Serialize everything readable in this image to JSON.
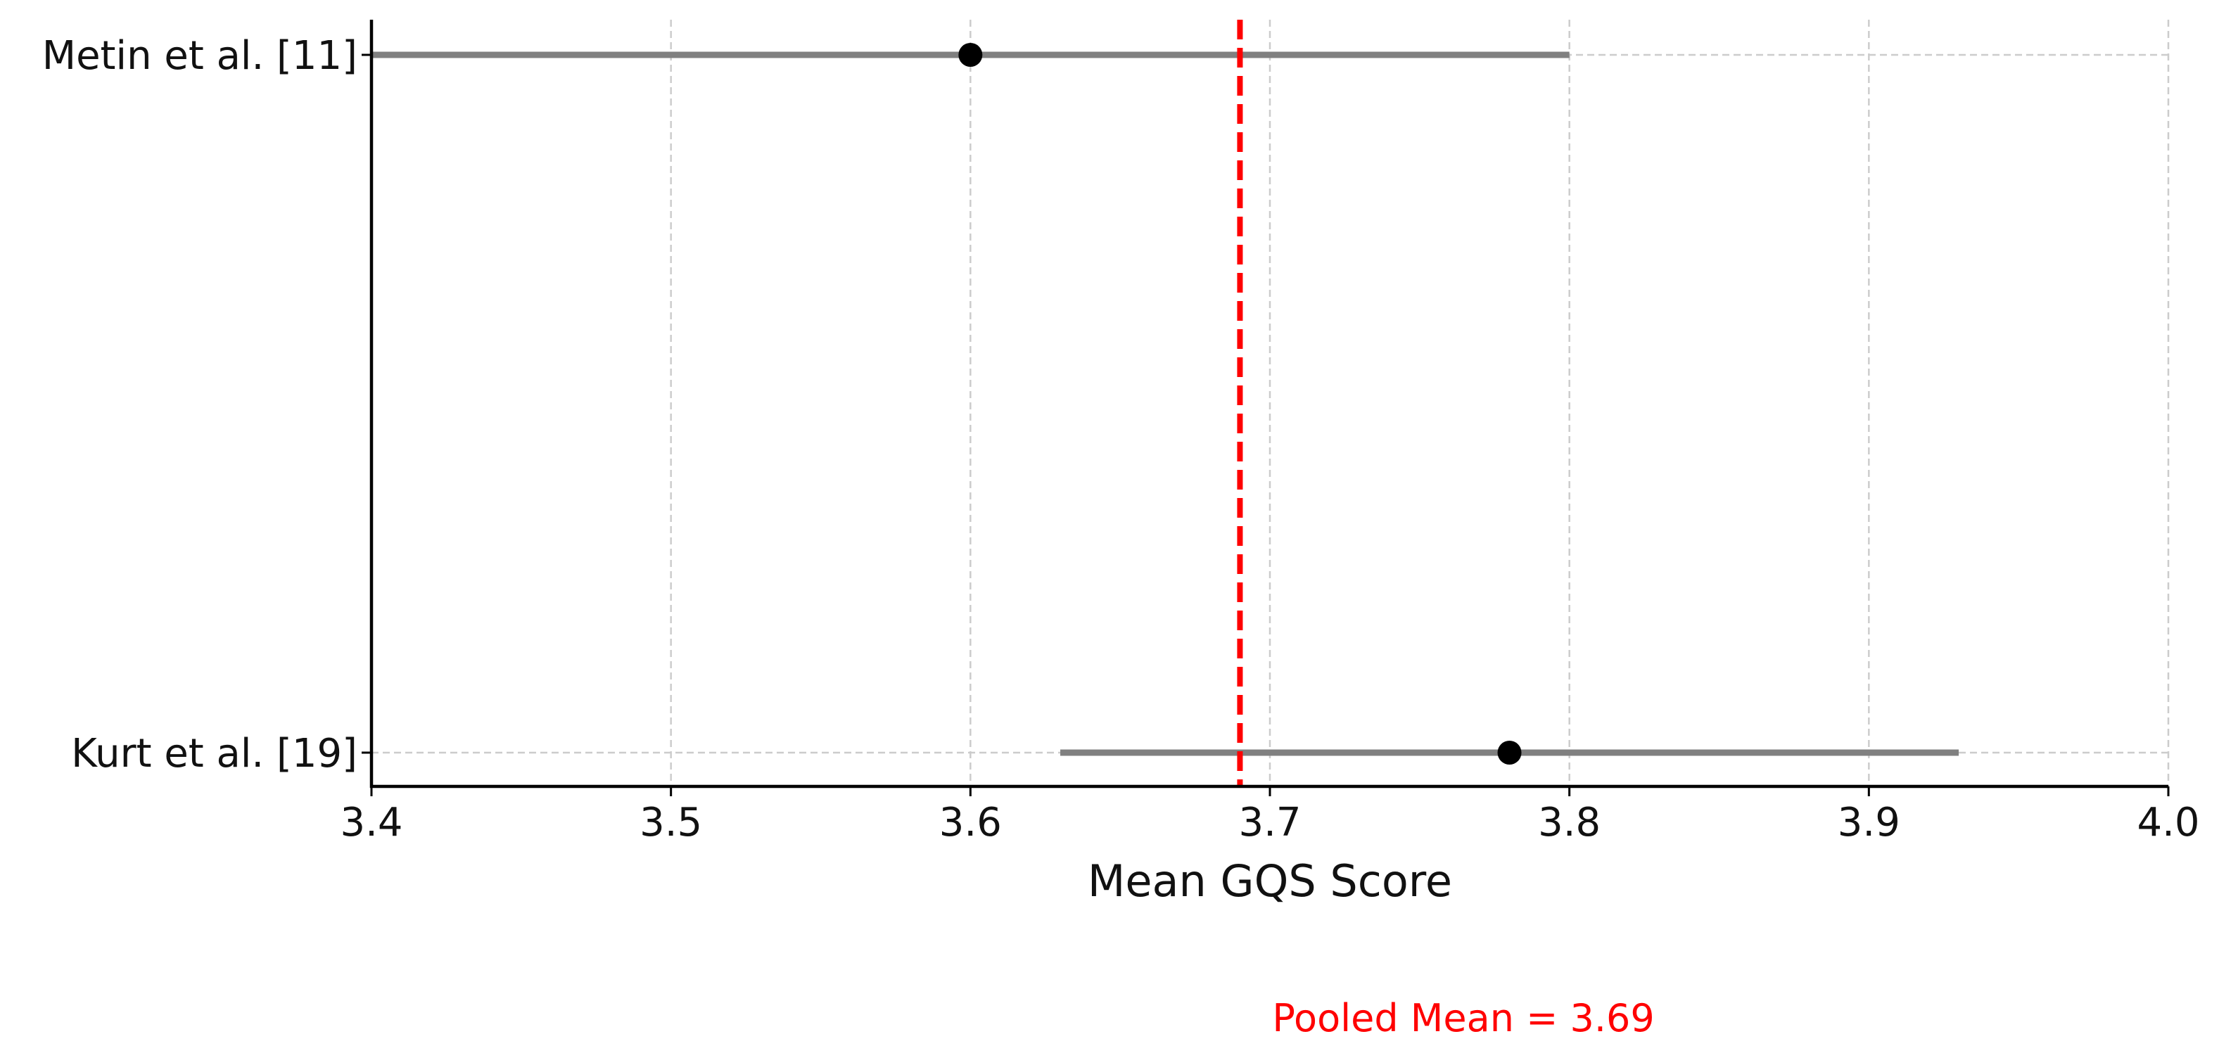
{
  "chart_data": {
    "type": "forest",
    "xlabel": "Mean GQS Score",
    "xlim": [
      3.4,
      4.0
    ],
    "x_ticks": [
      3.4,
      3.5,
      3.6,
      3.7,
      3.8,
      3.9,
      4.0
    ],
    "x_tick_labels": [
      "3.4",
      "3.5",
      "3.6",
      "3.7",
      "3.8",
      "3.9",
      "4.0"
    ],
    "grid": true,
    "studies": [
      {
        "label": "Metin et al. [11]",
        "mean": 3.6,
        "ci_low": 3.4,
        "ci_high": 3.8
      },
      {
        "label": "Kurt et al. [19]",
        "mean": 3.78,
        "ci_low": 3.63,
        "ci_high": 3.93
      }
    ],
    "pooled_mean": 3.69,
    "pooled_label": "Pooled Mean = 3.69",
    "colors": {
      "point": "#000000",
      "ci_line": "#808080",
      "pooled_line": "#ff0000",
      "grid": "#cccccc",
      "axis": "#000000"
    }
  }
}
